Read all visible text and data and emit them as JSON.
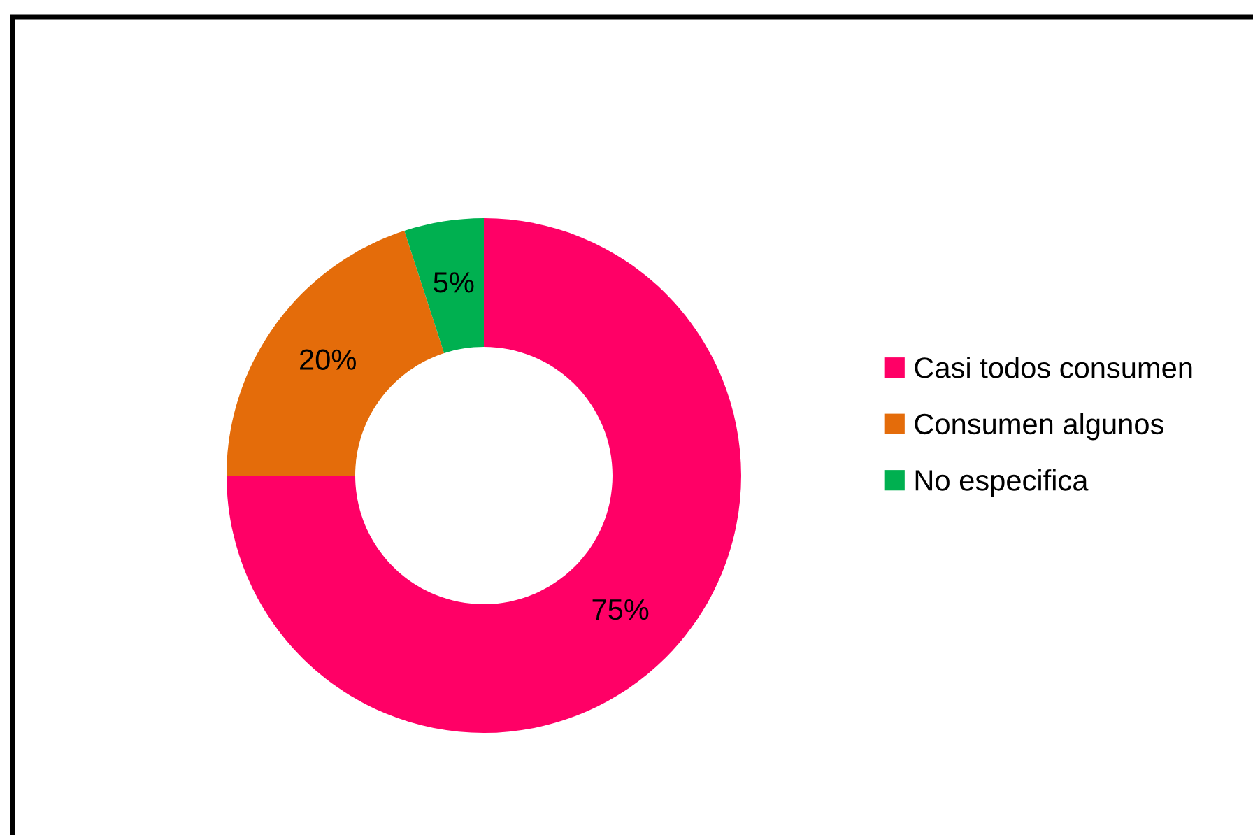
{
  "chart_data": {
    "type": "donut",
    "categories": [
      "Casi todos consumen",
      "Consumen algunos",
      "No especifica"
    ],
    "values": [
      75,
      20,
      5
    ],
    "colors": [
      "#ff0066",
      "#e46c0a",
      "#00b050"
    ],
    "value_labels": [
      "75%",
      "20%",
      "5%"
    ],
    "legend": "right"
  }
}
